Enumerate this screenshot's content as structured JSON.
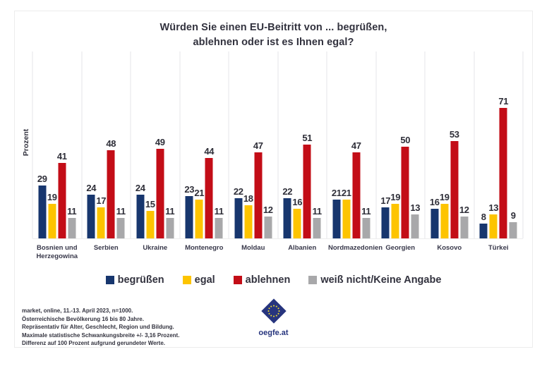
{
  "header": {
    "title_line1": "Würden Sie einen EU-Beitritt von ... begrüßen,",
    "title_line2": "ablehnen oder ist es Ihnen egal?"
  },
  "chart_data": {
    "type": "bar",
    "title": "Würden Sie einen EU-Beitritt von ... begrüßen, ablehnen oder ist es Ihnen egal?",
    "ylabel": "Prozent",
    "xlabel": "",
    "ylim": [
      0,
      100
    ],
    "grid": "vertical category separators, light gray",
    "legend_position": "bottom",
    "categories": [
      "Bosnien und Herzegowina",
      "Serbien",
      "Ukraine",
      "Montenegro",
      "Moldau",
      "Albanien",
      "Nordmazedonien",
      "Georgien",
      "Kosovo",
      "Türkei"
    ],
    "series": [
      {
        "name": "begrüßen",
        "color": "#17366e",
        "values": [
          29,
          24,
          24,
          23,
          22,
          22,
          21,
          17,
          16,
          8
        ]
      },
      {
        "name": "egal",
        "color": "#fdc400",
        "values": [
          19,
          17,
          15,
          21,
          18,
          16,
          21,
          19,
          19,
          13
        ]
      },
      {
        "name": "ablehnen",
        "color": "#c30d17",
        "values": [
          41,
          48,
          49,
          44,
          47,
          51,
          47,
          50,
          53,
          71
        ]
      },
      {
        "name": "weiß nicht/Keine Angabe",
        "color": "#a8a8aa",
        "values": [
          11,
          11,
          11,
          11,
          12,
          11,
          11,
          13,
          12,
          9
        ]
      }
    ]
  },
  "footer": {
    "lines": [
      "market, online, 11.-13. April 2023, n=1000.",
      "Österreichische Bevölkerung 16 bis 80 Jahre.",
      "Repräsentativ für Alter, Geschlecht, Region und Bildung.",
      "Maximale statistische Schwankungsbreite +/- 3,16 Prozent.",
      "Differenz auf 100 Prozent aufgrund gerundeter Werte."
    ]
  },
  "logo": {
    "text": "oegfe.at",
    "color": "#27357e"
  }
}
